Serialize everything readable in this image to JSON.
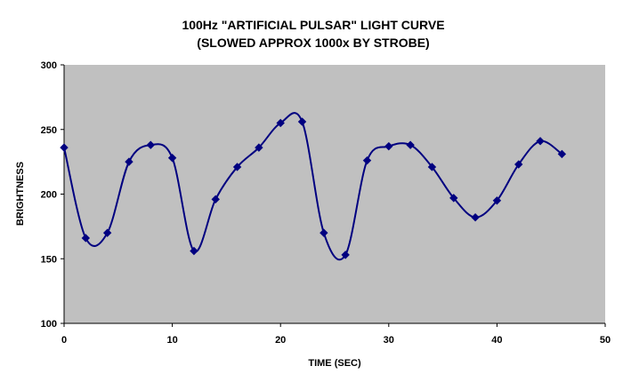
{
  "chart_data": {
    "type": "line",
    "title": "100Hz \"ARTIFICIAL PULSAR\" LIGHT CURVE",
    "subtitle": "(SLOWED APPROX 1000x BY STROBE)",
    "xlabel": "TIME (SEC)",
    "ylabel": "BRIGHTNESS",
    "xlim": [
      0,
      50
    ],
    "ylim": [
      100,
      300
    ],
    "xticks": [
      0,
      10,
      20,
      30,
      40,
      50
    ],
    "yticks": [
      100,
      150,
      200,
      250,
      300
    ],
    "grid": false,
    "legend": "none",
    "smooth": true,
    "plot_background": "#c0c0c0",
    "series": [
      {
        "color": "#000080",
        "marker": "diamond",
        "x": [
          0,
          2,
          4,
          6,
          8,
          10,
          12,
          14,
          16,
          18,
          20,
          22,
          24,
          26,
          28,
          30,
          32,
          34,
          36,
          38,
          40,
          42,
          44,
          46
        ],
        "y": [
          236,
          166,
          170,
          225,
          238,
          228,
          156,
          196,
          221,
          236,
          255,
          256,
          170,
          153,
          226,
          237,
          238,
          221,
          197,
          182,
          195,
          223,
          241,
          231
        ]
      }
    ]
  }
}
